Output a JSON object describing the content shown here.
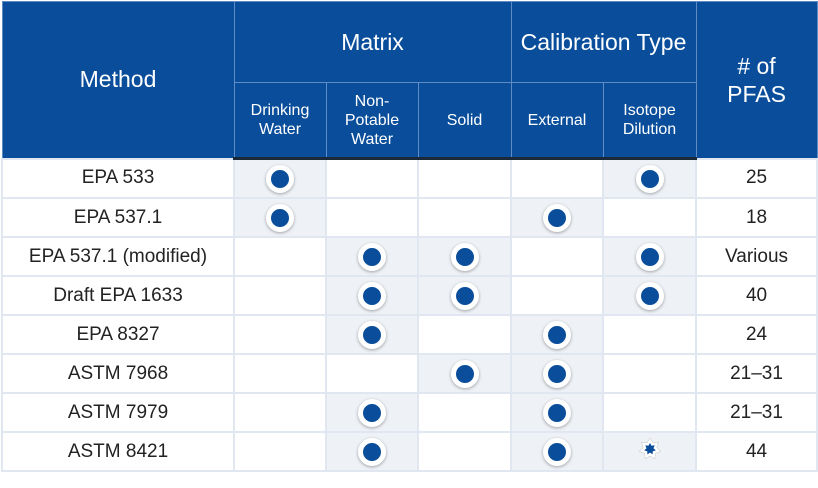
{
  "header": {
    "method": "Method",
    "matrix": "Matrix",
    "calibration": "Calibration Type",
    "pfas": "# of PFAS",
    "sub": [
      "Drinking Water",
      "Non-Potable Water",
      "Solid",
      "External",
      "Isotope Dilution"
    ]
  },
  "rows": [
    {
      "method": "EPA 533",
      "marks": [
        "dot",
        "",
        "",
        "",
        "dot"
      ],
      "pfas": "25"
    },
    {
      "method": "EPA 537.1",
      "marks": [
        "dot",
        "",
        "",
        "dot",
        ""
      ],
      "pfas": "18"
    },
    {
      "method": "EPA 537.1 (modified)",
      "marks": [
        "",
        "dot",
        "dot",
        "",
        "dot"
      ],
      "pfas": "Various"
    },
    {
      "method": "Draft EPA 1633",
      "marks": [
        "",
        "dot",
        "dot",
        "",
        "dot"
      ],
      "pfas": "40"
    },
    {
      "method": "EPA 8327",
      "marks": [
        "",
        "dot",
        "",
        "dot",
        ""
      ],
      "pfas": "24"
    },
    {
      "method": "ASTM 7968",
      "marks": [
        "",
        "",
        "dot",
        "dot",
        ""
      ],
      "pfas": "21–31"
    },
    {
      "method": "ASTM 7979",
      "marks": [
        "",
        "dot",
        "",
        "dot",
        ""
      ],
      "pfas": "21–31"
    },
    {
      "method": "ASTM 8421",
      "marks": [
        "",
        "dot",
        "",
        "dot",
        "star"
      ],
      "pfas": "44"
    }
  ],
  "colors": {
    "header": "#0a4e9b",
    "marked_cell": "#eef2f7",
    "dot": "#0a4e9b"
  }
}
